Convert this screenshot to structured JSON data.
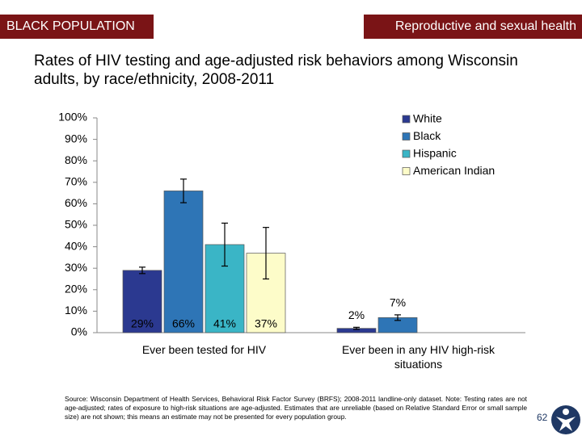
{
  "header": {
    "section": "BLACK POPULATION",
    "topic": "Reproductive and sexual health"
  },
  "chart_data": {
    "type": "bar",
    "title": "Rates of HIV testing and age-adjusted risk behaviors among Wisconsin adults, by race/ethnicity, 2008-2011",
    "categories": [
      "Ever been tested for HIV",
      "Ever been in any HIV high-risk situations"
    ],
    "series": [
      {
        "name": "White",
        "color": "#2b3990",
        "values": [
          29,
          2
        ],
        "value_labels": [
          "29%",
          "2%"
        ],
        "errors": [
          1.5,
          0.5
        ]
      },
      {
        "name": "Black",
        "color": "#2e75b6",
        "values": [
          66,
          7
        ],
        "value_labels": [
          "66%",
          "7%"
        ],
        "errors": [
          5.5,
          1.3
        ]
      },
      {
        "name": "Hispanic",
        "color": "#3ab5c6",
        "values": [
          41,
          null
        ],
        "value_labels": [
          "41%",
          null
        ],
        "errors": [
          10,
          null
        ]
      },
      {
        "name": "American Indian",
        "color": "#fdfcc9",
        "values": [
          37,
          null
        ],
        "value_labels": [
          "37%",
          null
        ],
        "errors": [
          12,
          null
        ]
      }
    ],
    "ylim": [
      0,
      100
    ],
    "yticks": [
      {
        "value": 0,
        "label": "0%"
      },
      {
        "value": 10,
        "label": "10%"
      },
      {
        "value": 20,
        "label": "20%"
      },
      {
        "value": 30,
        "label": "30%"
      },
      {
        "value": 40,
        "label": "40%"
      },
      {
        "value": 50,
        "label": "50%"
      },
      {
        "value": 60,
        "label": "60%"
      },
      {
        "value": 70,
        "label": "70%"
      },
      {
        "value": 80,
        "label": "80%"
      },
      {
        "value": 90,
        "label": "90%"
      },
      {
        "value": 100,
        "label": "100%"
      }
    ],
    "grid": false,
    "legend": "top-right"
  },
  "footer": {
    "source": "Source: Wisconsin Department of Health Services, Behavioral Risk Factor Survey (BRFS); 2008-2011 landline-only dataset. Note: Testing rates are not age-adjusted; rates of exposure to high-risk situations are age-adjusted. Estimates that are unreliable (based on Relative Standard Error or small sample size) are not shown; this means an estimate may not be presented for every population group.",
    "page": "62"
  }
}
